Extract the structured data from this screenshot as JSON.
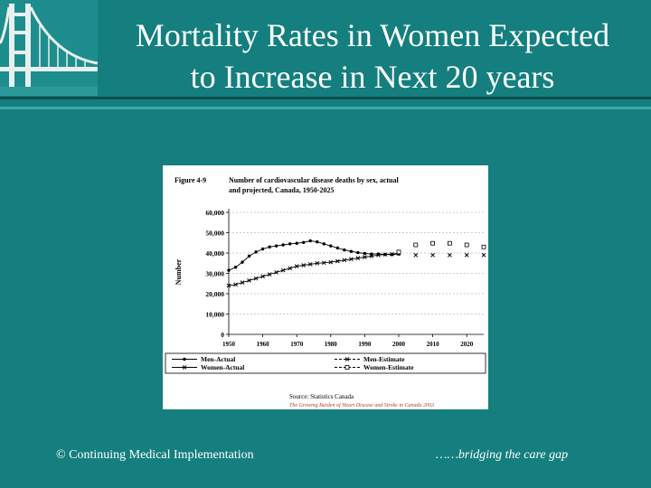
{
  "slide": {
    "title_line1": "Mortality Rates in Women Expected",
    "title_line2": "to Increase in Next 20 years",
    "footer_left": "© Continuing Medical Implementation",
    "footer_right": "……bridging the care gap",
    "colors": {
      "background": "#147f7e",
      "text": "#ffffff",
      "logo_bg": "#1d8e8d"
    },
    "logo_icon": "golden-gate-bridge-icon"
  },
  "chart_data": {
    "type": "line",
    "figure_label": "Figure 4-9",
    "title_line1": "Number of cardiovascular disease deaths by sex, actual",
    "title_line2": "and projected, Canada, 1950-2025",
    "xlabel": "",
    "ylabel": "Number",
    "xlim": [
      1950,
      2025
    ],
    "ylim": [
      0,
      60000
    ],
    "y_ticks": [
      0,
      10000,
      20000,
      30000,
      40000,
      50000,
      60000
    ],
    "y_tick_labels": [
      "0",
      "10,000",
      "20,000",
      "30,000",
      "40,000",
      "50,000",
      "60,000"
    ],
    "x_ticks": [
      1950,
      1960,
      1970,
      1980,
      1990,
      2000,
      2010,
      2020
    ],
    "x_tick_labels": [
      "1950",
      "1960",
      "1970",
      "1980",
      "1990",
      "2000",
      "2010",
      "2020"
    ],
    "source": "Source: Statistics Canada",
    "citation": "The Growing Burden of Heart Disease and Stroke in Canada 2003",
    "series": [
      {
        "name": "Men-Actual",
        "marker": "dot",
        "style": "solid",
        "x": [
          1950,
          1952,
          1954,
          1956,
          1958,
          1960,
          1962,
          1964,
          1966,
          1968,
          1970,
          1972,
          1974,
          1976,
          1978,
          1980,
          1982,
          1984,
          1986,
          1988,
          1990,
          1992,
          1994,
          1996,
          1998,
          2000
        ],
        "y": [
          31500,
          33000,
          35500,
          38500,
          40500,
          42000,
          43000,
          43500,
          44000,
          44500,
          44800,
          45200,
          46000,
          45500,
          44500,
          43500,
          42500,
          41500,
          40800,
          40200,
          39800,
          39500,
          39500,
          39300,
          39200,
          39500
        ]
      },
      {
        "name": "Women-Actual",
        "marker": "x",
        "style": "solid",
        "x": [
          1950,
          1952,
          1954,
          1956,
          1958,
          1960,
          1962,
          1964,
          1966,
          1968,
          1970,
          1972,
          1974,
          1976,
          1978,
          1980,
          1982,
          1984,
          1986,
          1988,
          1990,
          1992,
          1994,
          1996,
          1998,
          2000
        ],
        "y": [
          24000,
          24500,
          25500,
          26500,
          27500,
          28500,
          29500,
          30500,
          31500,
          32500,
          33500,
          34000,
          34500,
          35000,
          35200,
          35500,
          36000,
          36500,
          37000,
          37500,
          38000,
          38500,
          39000,
          39300,
          39500,
          39800
        ]
      },
      {
        "name": "Men-Estimate",
        "marker": "x",
        "style": "dashed",
        "x": [
          2005,
          2010,
          2015,
          2020,
          2025
        ],
        "y": [
          39000,
          39000,
          39000,
          39000,
          39000
        ]
      },
      {
        "name": "Women-Estimate",
        "marker": "square",
        "style": "dashed",
        "x": [
          2000,
          2005,
          2010,
          2015,
          2020,
          2025
        ],
        "y": [
          40500,
          44000,
          44800,
          44800,
          44000,
          43000
        ]
      }
    ]
  }
}
